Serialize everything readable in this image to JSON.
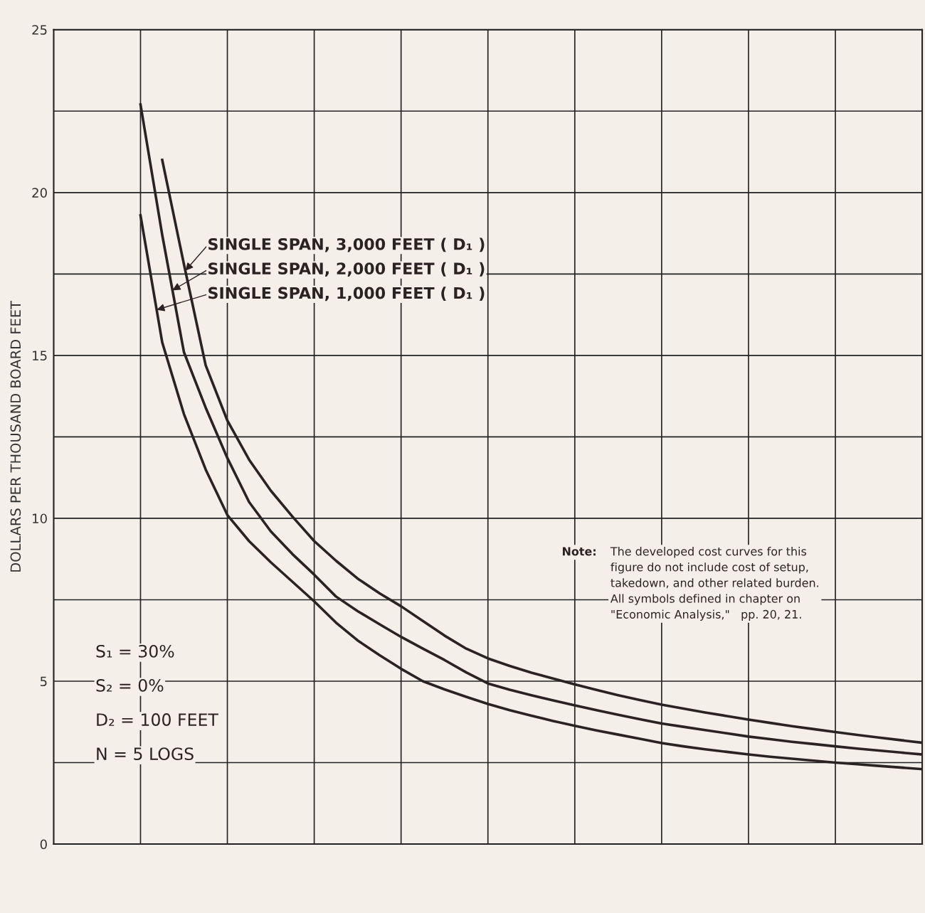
{
  "chart_data": {
    "type": "line",
    "ylabel": "DOLLARS PER THOUSAND BOARD FEET",
    "categories": [
      null,
      null,
      null,
      null,
      null,
      null,
      null,
      null,
      null,
      null,
      null,
      null,
      null,
      null,
      null,
      null,
      null,
      null,
      null,
      null,
      null,
      null,
      null,
      null,
      null,
      null,
      null,
      null,
      null,
      null,
      null,
      null,
      null,
      null,
      null,
      null,
      null,
      null,
      null,
      null,
      null
    ],
    "series": [
      {
        "name": "SINGLE SPAN, 3,000 FEET ( D₁ )",
        "color": "#2a2323",
        "values": [
          null,
          null,
          null,
          null,
          null,
          21.0,
          17.8,
          14.7,
          13.0,
          11.8,
          10.85,
          10.05,
          9.3,
          8.7,
          8.15,
          7.7,
          7.3,
          6.85,
          6.4,
          6.0,
          5.7,
          5.47,
          5.26,
          5.08,
          4.9,
          4.73,
          4.57,
          4.42,
          4.28,
          4.16,
          4.04,
          3.93,
          3.82,
          3.72,
          3.62,
          3.53,
          3.44,
          3.35,
          3.27,
          3.19,
          3.11
        ]
      },
      {
        "name": "SINGLE SPAN, 2,000 FEET ( D₁ )",
        "color": "#2a2323",
        "values": [
          null,
          null,
          null,
          null,
          22.7,
          18.7,
          15.1,
          13.4,
          11.85,
          10.5,
          9.6,
          8.9,
          8.27,
          7.6,
          7.15,
          6.75,
          6.36,
          6.0,
          5.65,
          5.27,
          4.93,
          4.74,
          4.57,
          4.41,
          4.26,
          4.11,
          3.97,
          3.83,
          3.7,
          3.6,
          3.5,
          3.4,
          3.3,
          3.22,
          3.14,
          3.07,
          3.0,
          2.93,
          2.87,
          2.81,
          2.75
        ]
      },
      {
        "name": "SINGLE SPAN, 1,000 FEET ( D₁ )",
        "color": "#2a2323",
        "values": [
          null,
          null,
          null,
          null,
          19.3,
          15.4,
          13.2,
          11.5,
          10.1,
          9.3,
          8.65,
          8.05,
          7.45,
          6.8,
          6.25,
          5.8,
          5.38,
          5.0,
          4.75,
          4.52,
          4.3,
          4.11,
          3.94,
          3.78,
          3.63,
          3.49,
          3.36,
          3.23,
          3.1,
          3.0,
          2.91,
          2.83,
          2.75,
          2.68,
          2.62,
          2.56,
          2.5,
          2.45,
          2.4,
          2.35,
          2.3
        ]
      }
    ],
    "ylim": [
      0,
      25
    ],
    "yticks": [
      0,
      {
        "value": 2.5,
        "label": null
      },
      5,
      {
        "value": 7.5,
        "label": null
      },
      10,
      {
        "value": 12.5,
        "label": null
      },
      15,
      {
        "value": 17.5,
        "label": null
      },
      20,
      {
        "value": 22.5,
        "label": null
      },
      25
    ],
    "grid": true,
    "legend": "top left",
    "marker": "none",
    "line_style": "solid",
    "annotations": [
      "S₁ = 30%",
      "S₂ = 0%",
      "D₂ = 100 FEET",
      "N = 5 LOGS",
      "Note:",
      "The developed cost curves for this\nfigure do not include cost of setup,\ntakedown, and other related burden.\nAll symbols defined in chapter on\n\"Economic Analysis,\"   pp. 20, 21."
    ]
  }
}
